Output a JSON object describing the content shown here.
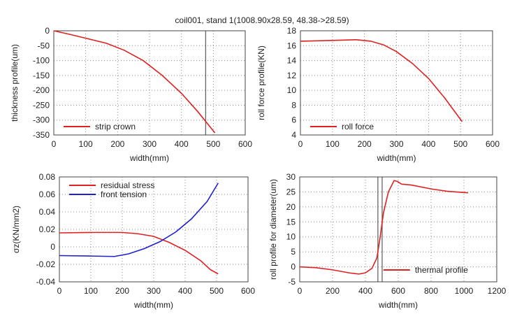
{
  "title": "coil001, stand 1(1008.90x28.59, 48.38->28.59)",
  "chart_data": [
    {
      "type": "line",
      "xlabel": "width(mm)",
      "ylabel": "thickness profile(um)",
      "xlim": [
        0,
        600
      ],
      "ylim": [
        -350,
        0
      ],
      "xticks": [
        0,
        100,
        200,
        300,
        400,
        500,
        600
      ],
      "yticks": [
        0,
        -50,
        -100,
        -150,
        -200,
        -250,
        -300,
        -350
      ],
      "grid": true,
      "legend": "bottom-left",
      "vlines": [
        476
      ],
      "series": [
        {
          "name": "strip crown",
          "color": "#e02020",
          "x": [
            0,
            50,
            100,
            165,
            220,
            280,
            340,
            400,
            450,
            505
          ],
          "y": [
            0,
            -12,
            -25,
            -42,
            -65,
            -100,
            -150,
            -210,
            -270,
            -343
          ]
        }
      ]
    },
    {
      "type": "line",
      "xlabel": "width(mm)",
      "ylabel": "roll force profile(KN)",
      "xlim": [
        0,
        600
      ],
      "ylim": [
        4,
        18
      ],
      "xticks": [
        0,
        100,
        200,
        300,
        400,
        500,
        600
      ],
      "yticks": [
        4,
        6,
        8,
        10,
        12,
        14,
        16,
        18
      ],
      "grid": true,
      "legend": "bottom-left",
      "vlines": [],
      "series": [
        {
          "name": "roll force",
          "color": "#e02020",
          "x": [
            0,
            100,
            175,
            220,
            260,
            300,
            350,
            400,
            450,
            505
          ],
          "y": [
            16.6,
            16.7,
            16.8,
            16.6,
            16.1,
            15.2,
            13.6,
            11.6,
            9.0,
            5.8
          ]
        }
      ]
    },
    {
      "type": "line",
      "xlabel": "width(mm)",
      "ylabel": "σz(KN/mm2)",
      "xlim": [
        0,
        600
      ],
      "ylim": [
        -0.04,
        0.08
      ],
      "xticks": [
        0,
        100,
        200,
        300,
        400,
        500,
        600
      ],
      "yticks": [
        -0.04,
        -0.02,
        0,
        0.02,
        0.04,
        0.06,
        0.08
      ],
      "ytick_labels": [
        "-0.04",
        "-0.02",
        "0",
        "0.02",
        "0.04",
        "0.06",
        "0.08"
      ],
      "grid": true,
      "legend": "top-left",
      "vlines": [],
      "series": [
        {
          "name": "residual stress",
          "color": "#e02020",
          "x": [
            0,
            100,
            200,
            250,
            300,
            350,
            400,
            450,
            480,
            505
          ],
          "y": [
            0.016,
            0.0165,
            0.0165,
            0.015,
            0.012,
            0.005,
            -0.004,
            -0.016,
            -0.026,
            -0.031
          ]
        },
        {
          "name": "front tension",
          "color": "#2020d0",
          "x": [
            0,
            100,
            175,
            220,
            270,
            320,
            370,
            420,
            470,
            505
          ],
          "y": [
            -0.01,
            -0.0105,
            -0.011,
            -0.008,
            -0.002,
            0.006,
            0.017,
            0.032,
            0.052,
            0.073
          ]
        }
      ]
    },
    {
      "type": "line",
      "xlabel": "width(mm)",
      "ylabel": "roll profile for diameter(um)",
      "xlim": [
        0,
        1200
      ],
      "ylim": [
        -5,
        30
      ],
      "xticks": [
        0,
        200,
        400,
        600,
        800,
        1000,
        1200
      ],
      "yticks": [
        -5,
        0,
        5,
        10,
        15,
        20,
        25,
        30
      ],
      "grid": true,
      "legend": "bottom-right",
      "vlines": [
        476,
        502
      ],
      "series": [
        {
          "name": "thermal profile",
          "color": "#e02020",
          "x": [
            0,
            100,
            200,
            300,
            360,
            400,
            440,
            470,
            490,
            510,
            540,
            575,
            595,
            620,
            680,
            800,
            900,
            1025
          ],
          "y": [
            0,
            -0.3,
            -1,
            -2,
            -2.4,
            -2,
            -0.5,
            3,
            10,
            18,
            25,
            28.8,
            28.5,
            27.6,
            27.3,
            26,
            25.2,
            24.7
          ]
        }
      ]
    }
  ]
}
